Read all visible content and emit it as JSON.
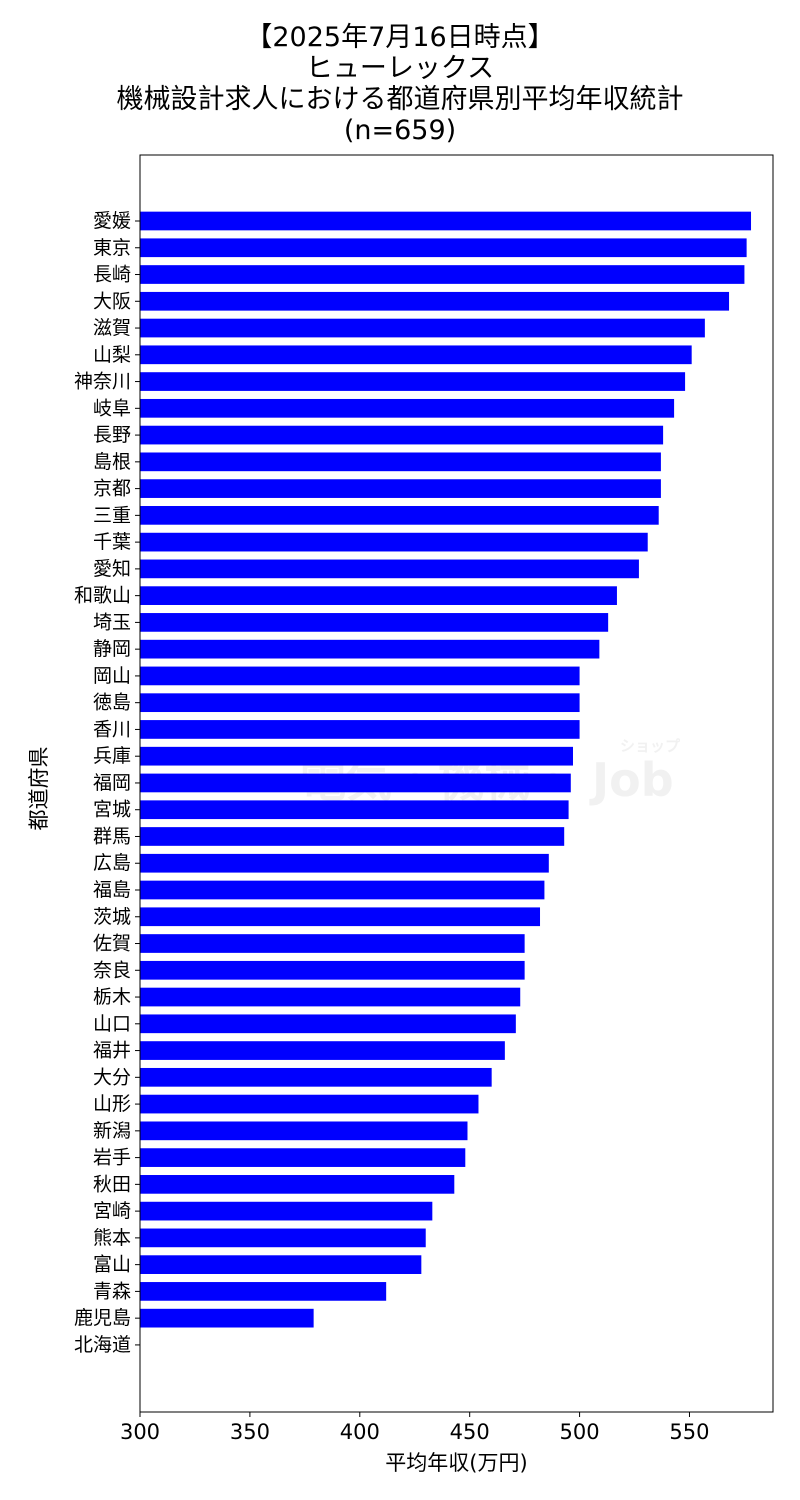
{
  "chart_data": {
    "type": "bar",
    "orientation": "horizontal",
    "title_lines": [
      "【2025年7月16日時点】",
      "ヒューレックス",
      "機械設計求人における都道府県別平均年収統計",
      "(n=659)"
    ],
    "xlabel": "平均年収(万円)",
    "ylabel": "都道府県",
    "xlim": [
      300,
      588
    ],
    "xticks": [
      300,
      350,
      400,
      450,
      500,
      550
    ],
    "bar_color": "#0000ff",
    "grid": false,
    "watermark": {
      "main": "電気・機械・ Job",
      "small": "ショップ"
    },
    "categories": [
      "愛媛",
      "東京",
      "長崎",
      "大阪",
      "滋賀",
      "山梨",
      "神奈川",
      "岐阜",
      "長野",
      "島根",
      "京都",
      "三重",
      "千葉",
      "愛知",
      "和歌山",
      "埼玉",
      "静岡",
      "岡山",
      "徳島",
      "香川",
      "兵庫",
      "福岡",
      "宮城",
      "群馬",
      "広島",
      "福島",
      "茨城",
      "佐賀",
      "奈良",
      "栃木",
      "山口",
      "福井",
      "大分",
      "山形",
      "新潟",
      "岩手",
      "秋田",
      "宮崎",
      "熊本",
      "富山",
      "青森",
      "鹿児島",
      "北海道"
    ],
    "values": [
      578,
      576,
      575,
      568,
      557,
      551,
      548,
      543,
      538,
      537,
      537,
      536,
      531,
      527,
      517,
      513,
      509,
      500,
      500,
      500,
      497,
      496,
      495,
      493,
      486,
      484,
      482,
      475,
      475,
      473,
      471,
      466,
      460,
      454,
      449,
      448,
      443,
      433,
      430,
      428,
      412,
      379,
      300
    ]
  }
}
